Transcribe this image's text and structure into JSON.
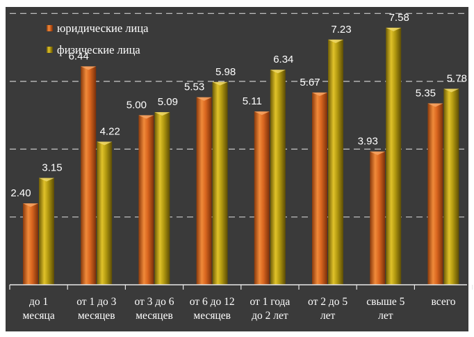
{
  "chart_data": {
    "type": "bar",
    "categories": [
      [
        "до 1",
        "месяца"
      ],
      [
        "от 1 до 3",
        "месяцев"
      ],
      [
        "от 3 до 6",
        "месяцев"
      ],
      [
        "от 6 до 12",
        "месяцев"
      ],
      [
        "от 1 года",
        "до 2 лет"
      ],
      [
        "от 2 до 5",
        "лет"
      ],
      [
        "свыше 5",
        "лет"
      ],
      [
        "всего"
      ]
    ],
    "series": [
      {
        "name": "юридические лица",
        "values": [
          2.4,
          6.44,
          5.0,
          5.53,
          5.11,
          5.67,
          3.93,
          5.35
        ]
      },
      {
        "name": "физические лица",
        "values": [
          3.15,
          4.22,
          5.09,
          5.98,
          6.34,
          7.23,
          7.58,
          5.78
        ]
      }
    ],
    "value_labels": [
      [
        "2.40",
        "6.44",
        "5.00",
        "5.53",
        "5.11",
        "5.67",
        "3.93",
        "5.35"
      ],
      [
        "3.15",
        "4.22",
        "5.09",
        "5.98",
        "6.34",
        "7.23",
        "7.58",
        "5.78"
      ]
    ],
    "ylim": [
      0,
      8
    ],
    "grid": true,
    "legend": "top-left",
    "colors": {
      "background": "#3a3a3a",
      "series": [
        "#d9661f",
        "#b39a10"
      ],
      "grid": "#bdbdbd",
      "text": "#ffffff"
    }
  }
}
